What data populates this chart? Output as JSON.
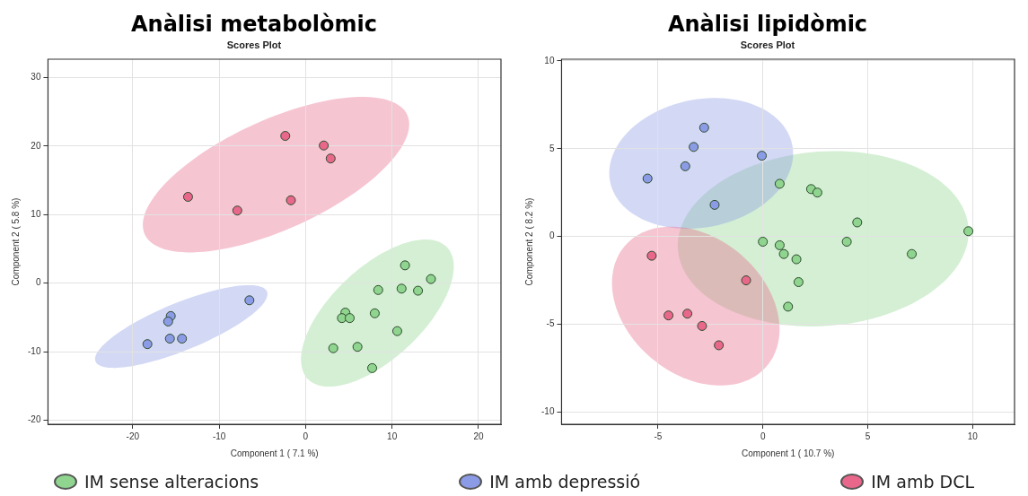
{
  "chart_data": [
    {
      "type": "scatter",
      "title": "Anàlisi metabolòmic",
      "subtitle": "Scores Plot",
      "xlabel": "Component 1 ( 7.1 %)",
      "ylabel": "Component 2 ( 5.8 %)",
      "xlim": [
        -29.8,
        22.6
      ],
      "ylim": [
        -20.6,
        32.7
      ],
      "xticks": [
        -20,
        -10,
        0,
        10,
        20
      ],
      "yticks": [
        -20,
        -10,
        0,
        10,
        20,
        30
      ],
      "grid": true,
      "marker": "circle",
      "legend": "bottom",
      "series": [
        {
          "name": "IM sense alteracions",
          "color": "#8fd48f",
          "x": [
            11.5,
            14.5,
            8.4,
            11.1,
            13.0,
            4.6,
            4.2,
            5.1,
            8.0,
            10.6,
            3.2,
            6.0,
            7.7
          ],
          "values": [
            2.6,
            0.6,
            -1.0,
            -0.8,
            -1.1,
            -4.3,
            -5.1,
            -5.1,
            -4.4,
            -7.0,
            -9.5,
            -9.3,
            -12.4
          ]
        },
        {
          "name": "IM amb depressió",
          "color": "#8c9be6",
          "x": [
            -6.5,
            -15.6,
            -15.9,
            -15.7,
            -14.3,
            -18.3
          ],
          "values": [
            -2.5,
            -4.8,
            -5.6,
            -8.1,
            -8.1,
            -8.9
          ]
        },
        {
          "name": "IM amb DCL",
          "color": "#e8678a",
          "x": [
            -2.35,
            2.1,
            2.9,
            -13.6,
            -7.9,
            -1.7
          ],
          "values": [
            21.5,
            20.1,
            18.2,
            12.6,
            10.6,
            12.1
          ]
        }
      ]
    },
    {
      "type": "scatter",
      "title": "Anàlisi lipidòmic",
      "subtitle": "Scores Plot",
      "xlabel": "Component 1 ( 10.7 %)",
      "ylabel": "Component 2 ( 8.2 %)",
      "xlim": [
        -9.6,
        12.0
      ],
      "ylim": [
        -10.7,
        10.1
      ],
      "xticks": [
        -5,
        0,
        5,
        10
      ],
      "yticks": [
        -10,
        -5,
        0,
        5,
        10
      ],
      "grid": true,
      "marker": "circle",
      "series": [
        {
          "color": "#8fd48f",
          "x": [
            0.8,
            2.3,
            2.6,
            4.5,
            9.8,
            0.0,
            0.8,
            1.0,
            1.6,
            4.0,
            7.1,
            1.7,
            1.2
          ],
          "values": [
            3.0,
            2.7,
            2.5,
            0.8,
            0.3,
            -0.3,
            -0.5,
            -1.0,
            -1.3,
            -0.3,
            -1.0,
            -2.6,
            -4.0
          ]
        },
        {
          "color": "#8c9be6",
          "x": [
            -2.8,
            -3.3,
            -0.05,
            -3.7,
            -5.5,
            -2.3
          ],
          "values": [
            6.2,
            5.1,
            4.6,
            4.0,
            3.3,
            1.8
          ]
        },
        {
          "color": "#e8678a",
          "x": [
            -5.3,
            -0.8,
            -4.5,
            -3.6,
            -2.9,
            -2.1
          ],
          "values": [
            -1.1,
            -2.5,
            -4.5,
            -4.4,
            -5.1,
            -6.2
          ]
        }
      ]
    }
  ]
}
